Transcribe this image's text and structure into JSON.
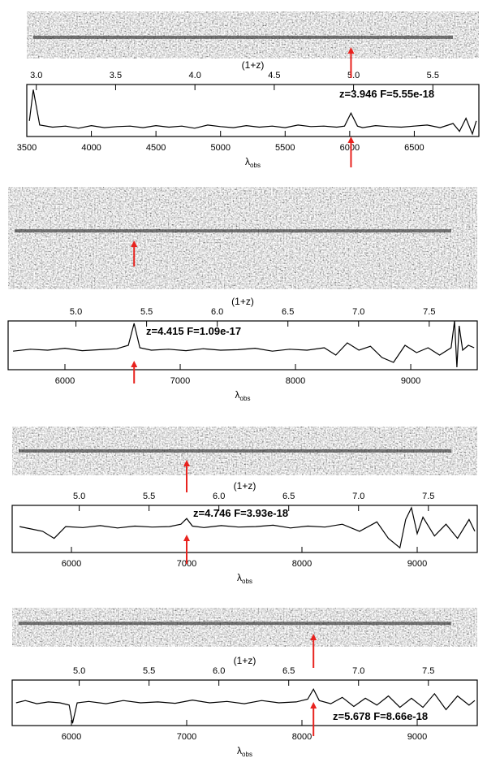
{
  "chart_data": [
    {
      "type": "line",
      "color": "#000000",
      "annotation_color": "#e8231f",
      "annotation": "z=3.946  F=5.55e-18",
      "arrow_x": 6010,
      "x_label": "λ",
      "x_label_sub": "obs",
      "x2_label": "(1+z)",
      "xlim": [
        3500,
        7000
      ],
      "xticks": [
        3500,
        4000,
        4500,
        5000,
        5500,
        6000,
        6500
      ],
      "x2lim": [
        2.94,
        5.79
      ],
      "x2ticks": [
        {
          "value": 3,
          "label": "3.0"
        },
        {
          "value": 3.5,
          "label": "3.5"
        },
        {
          "value": 4,
          "label": "4.0"
        },
        {
          "value": 4.5,
          "label": "4.5"
        },
        {
          "value": 5,
          "label": "5.0"
        },
        {
          "value": 5.5,
          "label": "5.5"
        }
      ],
      "ylim": [
        0,
        1
      ],
      "x": [
        3520,
        3550,
        3600,
        3700,
        3800,
        3900,
        4000,
        4100,
        4200,
        4300,
        4400,
        4500,
        4600,
        4700,
        4800,
        4900,
        5000,
        5100,
        5200,
        5300,
        5400,
        5500,
        5600,
        5700,
        5800,
        5900,
        5960,
        6010,
        6060,
        6100,
        6200,
        6300,
        6400,
        6500,
        6600,
        6700,
        6800,
        6850,
        6900,
        6950,
        6980
      ],
      "values": [
        0.3,
        0.9,
        0.22,
        0.18,
        0.2,
        0.16,
        0.21,
        0.17,
        0.19,
        0.2,
        0.17,
        0.21,
        0.18,
        0.2,
        0.16,
        0.22,
        0.19,
        0.17,
        0.21,
        0.18,
        0.2,
        0.17,
        0.22,
        0.19,
        0.2,
        0.18,
        0.2,
        0.45,
        0.2,
        0.17,
        0.21,
        0.19,
        0.18,
        0.2,
        0.22,
        0.17,
        0.25,
        0.1,
        0.35,
        0.05,
        0.3
      ]
    },
    {
      "type": "line",
      "color": "#000000",
      "annotation_color": "#e8231f",
      "annotation": "z=4.415  F=1.09e-17",
      "arrow_x": 6600,
      "x_label": "λ",
      "x_label_sub": "obs",
      "x2_label": "(1+z)",
      "xlim": [
        5507,
        9577
      ],
      "xticks": [
        6000,
        7000,
        8000,
        9000
      ],
      "x2lim": [
        4.52,
        7.84
      ],
      "x2ticks": [
        {
          "value": 5,
          "label": "5.0"
        },
        {
          "value": 5.5,
          "label": "5.5"
        },
        {
          "value": 6,
          "label": "6.0"
        },
        {
          "value": 6.5,
          "label": "6.5"
        },
        {
          "value": 7,
          "label": "7.0"
        },
        {
          "value": 7.5,
          "label": "7.5"
        }
      ],
      "ylim": [
        0,
        1
      ],
      "x": [
        5550,
        5700,
        5850,
        6000,
        6150,
        6300,
        6450,
        6550,
        6600,
        6650,
        6750,
        6900,
        7050,
        7200,
        7350,
        7500,
        7650,
        7800,
        7950,
        8100,
        8250,
        8350,
        8450,
        8550,
        8650,
        8750,
        8850,
        8950,
        9050,
        9150,
        9250,
        9350,
        9380,
        9400,
        9420,
        9450,
        9500,
        9550
      ],
      "values": [
        0.38,
        0.42,
        0.4,
        0.44,
        0.39,
        0.41,
        0.43,
        0.5,
        0.95,
        0.45,
        0.4,
        0.42,
        0.39,
        0.43,
        0.4,
        0.41,
        0.44,
        0.38,
        0.42,
        0.4,
        0.45,
        0.3,
        0.55,
        0.4,
        0.48,
        0.25,
        0.15,
        0.5,
        0.35,
        0.45,
        0.3,
        0.45,
        1.0,
        0.05,
        0.9,
        0.4,
        0.5,
        0.45
      ]
    },
    {
      "type": "line",
      "color": "#000000",
      "annotation_color": "#e8231f",
      "annotation": "z=4.746  F=3.93e-18",
      "arrow_x": 7000,
      "x_label": "λ",
      "x_label_sub": "obs",
      "x2_label": "(1+z)",
      "xlim": [
        5486,
        9521
      ],
      "xticks": [
        6000,
        7000,
        8000,
        9000
      ],
      "x2lim": [
        4.52,
        7.85
      ],
      "x2ticks": [
        {
          "value": 5,
          "label": "5.0"
        },
        {
          "value": 5.5,
          "label": "5.5"
        },
        {
          "value": 6,
          "label": "6.0"
        },
        {
          "value": 6.5,
          "label": "6.5"
        },
        {
          "value": 7,
          "label": "7.0"
        },
        {
          "value": 7.5,
          "label": "7.5"
        }
      ],
      "ylim": [
        0,
        1
      ],
      "x": [
        5550,
        5650,
        5750,
        5850,
        5950,
        6100,
        6250,
        6400,
        6550,
        6700,
        6850,
        6950,
        7000,
        7050,
        7150,
        7300,
        7450,
        7600,
        7750,
        7900,
        8050,
        8200,
        8350,
        8500,
        8650,
        8750,
        8850,
        8900,
        8950,
        9000,
        9050,
        9150,
        9250,
        9350,
        9450,
        9500
      ],
      "values": [
        0.55,
        0.5,
        0.45,
        0.3,
        0.55,
        0.53,
        0.57,
        0.52,
        0.56,
        0.54,
        0.55,
        0.6,
        0.72,
        0.56,
        0.53,
        0.57,
        0.54,
        0.55,
        0.58,
        0.52,
        0.56,
        0.54,
        0.6,
        0.45,
        0.65,
        0.3,
        0.1,
        0.7,
        0.95,
        0.4,
        0.75,
        0.35,
        0.6,
        0.3,
        0.7,
        0.45
      ]
    },
    {
      "type": "line",
      "color": "#000000",
      "annotation_color": "#e8231f",
      "annotation": "z=5.678  F=8.66e-18",
      "arrow_x": 8100,
      "x_label": "λ",
      "x_label_sub": "obs",
      "x2_label": "(1+z)",
      "xlim": [
        5486,
        9521
      ],
      "xticks": [
        6000,
        7000,
        8000,
        9000
      ],
      "x2lim": [
        4.52,
        7.85
      ],
      "x2ticks": [
        {
          "value": 5,
          "label": "5.0"
        },
        {
          "value": 5.5,
          "label": "5.5"
        },
        {
          "value": 6,
          "label": "6.0"
        },
        {
          "value": 6.5,
          "label": "6.5"
        },
        {
          "value": 7,
          "label": "7.0"
        },
        {
          "value": 7.5,
          "label": "7.5"
        }
      ],
      "ylim": [
        0,
        1
      ],
      "x": [
        5520,
        5600,
        5700,
        5800,
        5900,
        5980,
        6010,
        6050,
        6150,
        6300,
        6450,
        6600,
        6750,
        6900,
        7050,
        7200,
        7350,
        7500,
        7650,
        7800,
        7950,
        8050,
        8100,
        8150,
        8250,
        8350,
        8450,
        8550,
        8650,
        8750,
        8850,
        8950,
        9050,
        9150,
        9250,
        9350,
        9450,
        9500
      ],
      "values": [
        0.5,
        0.55,
        0.48,
        0.52,
        0.5,
        0.45,
        0.05,
        0.5,
        0.53,
        0.48,
        0.55,
        0.5,
        0.52,
        0.49,
        0.56,
        0.5,
        0.53,
        0.48,
        0.55,
        0.5,
        0.52,
        0.58,
        0.8,
        0.55,
        0.48,
        0.62,
        0.42,
        0.6,
        0.45,
        0.65,
        0.4,
        0.6,
        0.4,
        0.7,
        0.35,
        0.65,
        0.45,
        0.55
      ]
    }
  ]
}
